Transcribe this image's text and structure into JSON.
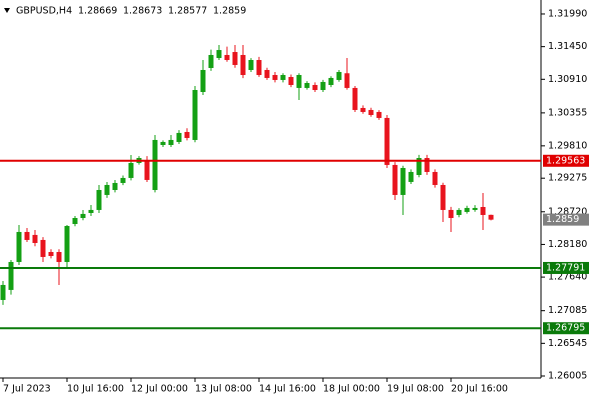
{
  "chart_data": {
    "type": "candlestick",
    "symbol": "GBPUSD,H4",
    "categories": [
      "7 Jul 2023",
      null,
      null,
      null,
      null,
      null,
      null,
      null,
      "10 Jul 16:00",
      null,
      null,
      null,
      null,
      null,
      null,
      null,
      "12 Jul 00:00",
      null,
      null,
      null,
      null,
      null,
      null,
      null,
      "13 Jul 08:00",
      null,
      null,
      null,
      null,
      null,
      null,
      null,
      "14 Jul 16:00",
      null,
      null,
      null,
      null,
      null,
      null,
      null,
      "18 Jul 00:00",
      null,
      null,
      null,
      null,
      null,
      null,
      null,
      "19 Jul 08:00",
      null,
      null,
      null,
      null,
      null,
      null,
      null,
      "20 Jul 16:00",
      null,
      null,
      null,
      null,
      null
    ],
    "open": [
      1.27262,
      1.27428,
      1.2789,
      1.28386,
      1.28337,
      1.28254,
      1.28055,
      1.28055,
      1.2789,
      1.28518,
      1.28617,
      1.287,
      1.2875,
      1.28998,
      1.2908,
      1.29196,
      1.29279,
      1.29527,
      1.29576,
      1.2908,
      1.29824,
      1.29824,
      1.29874,
      1.30039,
      1.29907,
      1.307,
      1.31097,
      1.31262,
      1.31312,
      1.31361,
      1.31312,
      1.31064,
      1.31229,
      1.31064,
      1.30981,
      1.30899,
      1.30948,
      1.30767,
      1.30767,
      1.30816,
      1.30733,
      1.30816,
      1.30899,
      1.3101,
      1.30767,
      1.30436,
      1.30403,
      1.3037,
      1.30271,
      1.29494,
      1.28998,
      1.29213,
      1.29328,
      1.29609,
      1.29378,
      1.29163,
      1.2875,
      1.28667,
      1.28717,
      1.2875,
      1.28799,
      1.28669
    ],
    "high": [
      1.27576,
      1.27923,
      1.28502,
      1.28452,
      1.28419,
      1.283,
      1.281,
      1.281,
      1.28502,
      1.2865,
      1.2875,
      1.28832,
      1.29163,
      1.29213,
      1.29246,
      1.2932,
      1.29659,
      1.2964,
      1.2964,
      1.2999,
      1.299,
      1.2999,
      1.3007,
      1.301,
      1.308,
      1.31229,
      1.314,
      1.31477,
      1.3145,
      1.31477,
      1.31477,
      1.3126,
      1.3128,
      1.311,
      1.3103,
      1.3101,
      1.3099,
      1.3101,
      1.3088,
      1.3086,
      1.309,
      1.3096,
      1.31064,
      1.31262,
      1.308,
      1.3048,
      1.3044,
      1.304,
      1.3032,
      1.2954,
      1.2948,
      1.2942,
      1.2966,
      1.2966,
      1.2942,
      1.292,
      1.288,
      1.2878,
      1.2882,
      1.2883,
      1.29031,
      1.28673
    ],
    "low": [
      1.2718,
      1.2735,
      1.2784,
      1.2822,
      1.2815,
      1.2789,
      1.2795,
      1.2751,
      1.278,
      1.2848,
      1.2858,
      1.2865,
      1.287,
      1.2895,
      1.2904,
      1.2916,
      1.2924,
      1.295,
      1.29213,
      1.2904,
      1.2979,
      1.2979,
      1.2984,
      1.299,
      1.2987,
      1.3065,
      1.3105,
      1.3123,
      1.312,
      1.311,
      1.3093,
      1.3103,
      1.3095,
      1.309,
      1.3086,
      1.3086,
      1.3078,
      1.30568,
      1.3074,
      1.307,
      1.307,
      1.3078,
      1.3087,
      1.3074,
      1.3037,
      1.3034,
      1.3029,
      1.3024,
      1.29444,
      1.28915,
      1.28667,
      1.2918,
      1.2929,
      1.2933,
      1.2912,
      1.28551,
      1.28386,
      1.2863,
      1.2869,
      1.2872,
      1.28419,
      1.28577
    ],
    "close": [
      1.2751,
      1.2789,
      1.28386,
      1.28254,
      1.28204,
      1.27973,
      1.27989,
      1.2789,
      1.28485,
      1.28617,
      1.28684,
      1.2875,
      1.2908,
      1.29163,
      1.29196,
      1.29279,
      1.29527,
      1.29609,
      1.29246,
      1.29907,
      1.29874,
      1.29907,
      1.30023,
      1.2994,
      1.30733,
      1.31064,
      1.31312,
      1.31394,
      1.31229,
      1.31147,
      1.30981,
      1.31229,
      1.30981,
      1.30932,
      1.30899,
      1.30981,
      1.30816,
      1.30981,
      1.30849,
      1.30733,
      1.30866,
      1.30932,
      1.31031,
      1.30767,
      1.30403,
      1.3037,
      1.3032,
      1.30271,
      1.29494,
      1.28998,
      1.29444,
      1.29378,
      1.29609,
      1.29378,
      1.29163,
      1.2875,
      1.28617,
      1.2875,
      1.28783,
      1.28783,
      1.28667,
      1.2859
    ],
    "up_color": "#14a014",
    "down_color": "#e8141e",
    "current_color": "#808080",
    "levels": [
      {
        "value": 1.29563,
        "color": "#e00000"
      },
      {
        "value": 1.27791,
        "color": "#0a7a0a"
      },
      {
        "value": 1.26795,
        "color": "#0a7a0a"
      }
    ],
    "ylim": [
      1.25972,
      1.32221
    ],
    "yticks": [
      {
        "value": 1.3199,
        "label": "1.31990"
      },
      {
        "value": 1.3145,
        "label": "1.31450"
      },
      {
        "value": 1.3091,
        "label": "1.30910"
      },
      1.30355,
      {
        "value": 1.2981,
        "label": "1.29810"
      },
      1.29275,
      {
        "value": 1.2872,
        "label": "1.28720"
      },
      {
        "value": 1.2818,
        "label": "1.28180"
      },
      {
        "value": 1.2764,
        "label": "1.27640"
      },
      1.27085,
      1.26545,
      {
        "value": 1.26005,
        "label": "1.26005"
      }
    ]
  }
}
